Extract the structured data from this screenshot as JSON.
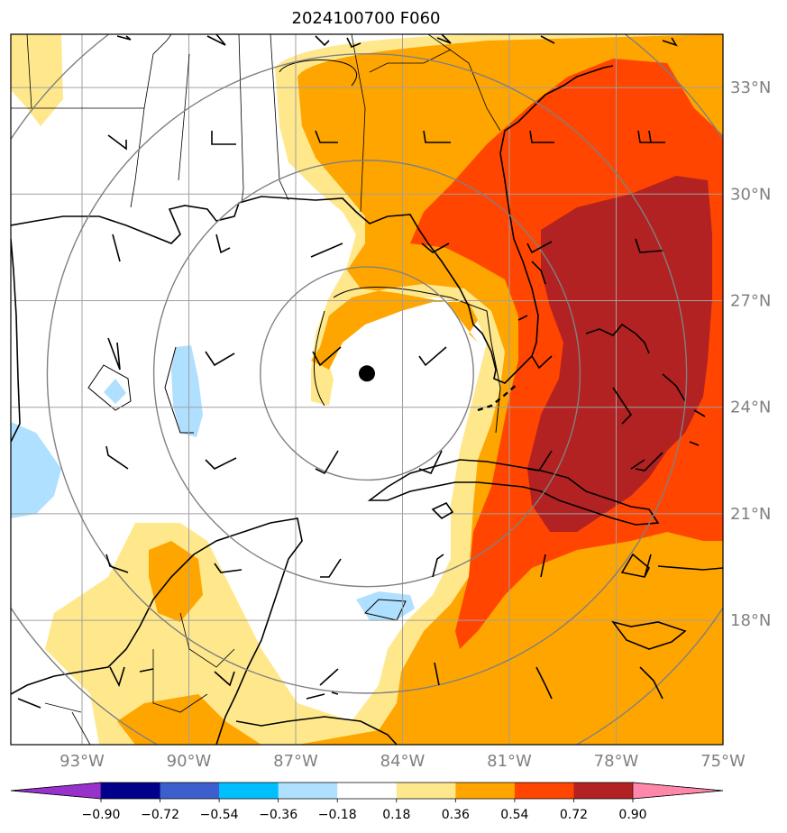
{
  "title": "2024100700 F060",
  "map": {
    "lon_range": [
      -95,
      -75
    ],
    "lat_range": [
      14.5,
      34.5
    ],
    "lon_ticks": [
      {
        "value": -93,
        "label": "93°W"
      },
      {
        "value": -90,
        "label": "90°W"
      },
      {
        "value": -87,
        "label": "87°W"
      },
      {
        "value": -84,
        "label": "84°W"
      },
      {
        "value": -81,
        "label": "81°W"
      },
      {
        "value": -78,
        "label": "78°W"
      },
      {
        "value": -75,
        "label": "75°W"
      }
    ],
    "lat_ticks": [
      {
        "value": 18,
        "label": "18°N"
      },
      {
        "value": 21,
        "label": "21°N"
      },
      {
        "value": 24,
        "label": "24°N"
      },
      {
        "value": 27,
        "label": "27°N"
      },
      {
        "value": 30,
        "label": "30°N"
      },
      {
        "value": 33,
        "label": "33°N"
      }
    ],
    "storm_center": {
      "lon": -85.0,
      "lat": 24.95
    },
    "range_rings_deg": [
      3,
      6,
      9,
      12
    ],
    "gridline_color": "#a0a0a0",
    "ring_color": "#808080"
  },
  "colorbar": {
    "levels": [
      -0.9,
      -0.72,
      -0.54,
      -0.36,
      -0.18,
      0.18,
      0.36,
      0.54,
      0.72,
      0.9
    ],
    "tick_labels": [
      "−0.90",
      "−0.72",
      "−0.54",
      "−0.36",
      "−0.18",
      "0.18",
      "0.36",
      "0.54",
      "0.72",
      "0.90"
    ],
    "colors": [
      "#9932cc",
      "#00008b",
      "#3c5fcd",
      "#00bfff",
      "#b0e0ff",
      "#ffffff",
      "#ffe88c",
      "#ffa500",
      "#ff4500",
      "#b22222",
      "#ff88aa"
    ],
    "extend": "both"
  }
}
